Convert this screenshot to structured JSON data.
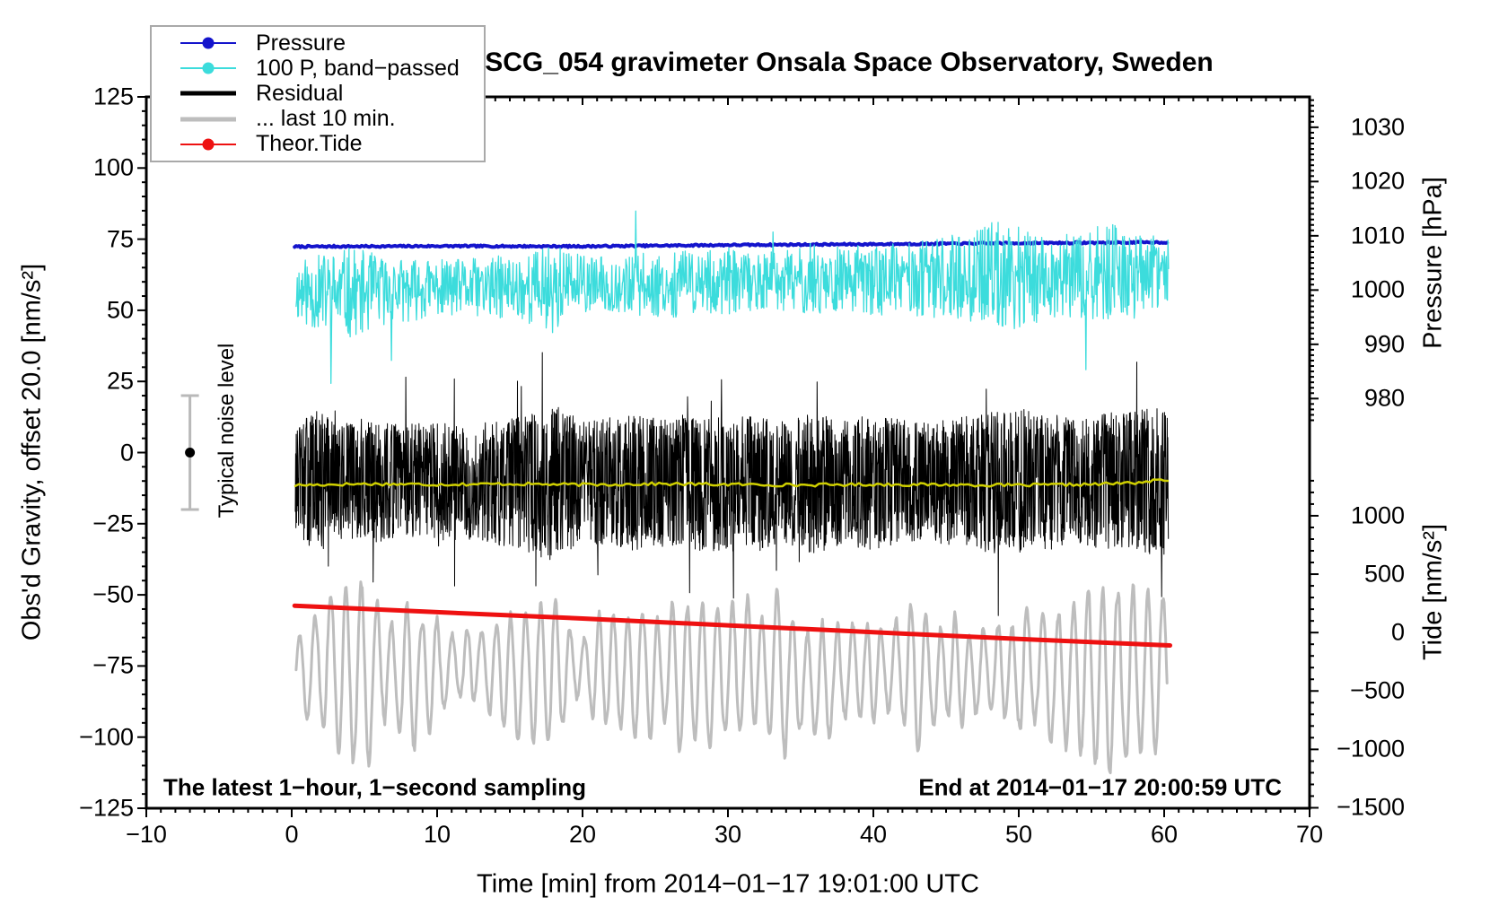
{
  "background": "#ffffff",
  "chart_data": {
    "type": "line",
    "title": "SCG_054 gravimeter Onsala Space Observatory, Sweden",
    "xlabel": "Time [min] from 2014−01−17 19:01:00 UTC",
    "annotations": {
      "sampling_note": "The latest 1−hour, 1−second sampling",
      "end_note": "End at 2014−01−17 20:00:59 UTC",
      "noise_note": "Typical noise level"
    },
    "axes": {
      "x": {
        "label": "Time [min] from 2014−01−17 19:01:00 UTC",
        "range": [
          -10,
          70
        ],
        "annot_step": 10,
        "minor_step": 1,
        "tick_values": [
          -10,
          0,
          10,
          20,
          30,
          40,
          50,
          60,
          70
        ],
        "tick_labels": [
          "−10",
          "0",
          "10",
          "20",
          "30",
          "40",
          "50",
          "60",
          "70"
        ]
      },
      "gravity": {
        "label": "Obs'd Gravity, offset 20.0 [nm/s²]",
        "range": [
          -125,
          125
        ],
        "annot_step": 25,
        "minor_step": 5,
        "tick_values": [
          125,
          100,
          75,
          50,
          25,
          0,
          -25,
          -50,
          -75,
          -100,
          -125
        ],
        "tick_labels": [
          "125",
          "100",
          "75",
          "50",
          "25",
          "0",
          "−25",
          "−50",
          "−75",
          "−100",
          "−125"
        ]
      },
      "pressure": {
        "label": "Pressure [hPa]",
        "range": [
          904.5,
          1035.6
        ],
        "annot_step": 10,
        "minor_step": 1,
        "minor_range": [
          976,
          1035
        ],
        "tick_values": [
          1030,
          1020,
          1010,
          1000,
          990,
          980
        ],
        "tick_labels": [
          "1030",
          "1020",
          "1010",
          "1000",
          "990",
          "980"
        ]
      },
      "tide": {
        "label": "Tide [nm/s²]",
        "range": [
          -1504,
          4586
        ],
        "annot_step": 500,
        "minor_step": 100,
        "minor_range": [
          -1500,
          1300
        ],
        "tick_values": [
          1000,
          500,
          0,
          -500,
          -1000,
          -1500
        ],
        "tick_labels": [
          "1000",
          "500",
          "0",
          "−500",
          "−1000",
          "−1500"
        ]
      }
    },
    "noise_marker": {
      "t": -7,
      "center": 0,
      "half_width": 20,
      "bar_color": "#b9b9b9",
      "dot_color": "#000000"
    },
    "legend": [
      {
        "label": "Pressure",
        "color": "#1414cc",
        "line_width": 2,
        "dot": true
      },
      {
        "label": "100 P, band−passed",
        "color": "#3cdcdc",
        "line_width": 2,
        "dot": true
      },
      {
        "label": "Residual",
        "color": "#000000",
        "line_width": 5,
        "dot": false
      },
      {
        "label": "... last 10 min.",
        "color": "#bdbdbd",
        "line_width": 5,
        "dot": false
      },
      {
        "label": "Theor.Tide",
        "color": "#ee1111",
        "line_width": 2,
        "dot": true
      }
    ],
    "series": [
      {
        "name": "pressure",
        "axis": "pressure",
        "color": "#1414cc",
        "width": 4,
        "gen": "jitter-trend",
        "seed": 7,
        "dt": 0.1,
        "t0": 0.2,
        "t1": 60.3,
        "jitter": 0.16,
        "points": [
          [
            0,
            1008.0
          ],
          [
            10,
            1008.1
          ],
          [
            20,
            1008.05
          ],
          [
            30,
            1008.3
          ],
          [
            40,
            1008.45
          ],
          [
            50,
            1008.65
          ],
          [
            60,
            1008.8
          ]
        ]
      },
      {
        "name": "pressure_bandpassed_x100",
        "axis": "gravity",
        "color": "#3cdcdc",
        "width": 1.3,
        "gen": "osc-noise",
        "seed": 11,
        "dt": 0.04,
        "t0": 0.3,
        "t1": 60.3,
        "spike_prob": 0.008,
        "spike_gain": 2.5,
        "points": [
          [
            0,
            57,
            10
          ],
          [
            2,
            56,
            14
          ],
          [
            4,
            56,
            16
          ],
          [
            6,
            57,
            13
          ],
          [
            8,
            57,
            11
          ],
          [
            10,
            58,
            10
          ],
          [
            12,
            58,
            10
          ],
          [
            14,
            58,
            11
          ],
          [
            16,
            58,
            12
          ],
          [
            18,
            58,
            16
          ],
          [
            20,
            59,
            10
          ],
          [
            22,
            59,
            10
          ],
          [
            24,
            59,
            11
          ],
          [
            26,
            59,
            12
          ],
          [
            28,
            60,
            11
          ],
          [
            30,
            60,
            12
          ],
          [
            32,
            60,
            10
          ],
          [
            34,
            60,
            11
          ],
          [
            36,
            61,
            13
          ],
          [
            38,
            61,
            11
          ],
          [
            40,
            61,
            13
          ],
          [
            42,
            61,
            12
          ],
          [
            44,
            61,
            14
          ],
          [
            46,
            62,
            15
          ],
          [
            48,
            62,
            19
          ],
          [
            50,
            62,
            19
          ],
          [
            52,
            62,
            16
          ],
          [
            54,
            62,
            14
          ],
          [
            56,
            63,
            18
          ],
          [
            58,
            63,
            16
          ],
          [
            60,
            63,
            12
          ]
        ]
      },
      {
        "name": "residual",
        "axis": "gravity",
        "color": "#000000",
        "width": 1,
        "gen": "dense-noise",
        "seed": 13,
        "dt": 0.0201,
        "t0": 0.25,
        "t1": 60.3,
        "spike_prob": 0.012,
        "spike_gain": 1.9,
        "points": [
          [
            0,
            -10,
            16
          ],
          [
            1,
            -10,
            22
          ],
          [
            2,
            -10,
            26
          ],
          [
            3,
            -10,
            20
          ],
          [
            5,
            -10,
            22
          ],
          [
            8,
            -10,
            20
          ],
          [
            10,
            -10.3,
            21
          ],
          [
            12,
            -10.3,
            20
          ],
          [
            14,
            -10.4,
            22
          ],
          [
            16,
            -10.5,
            24
          ],
          [
            18,
            -10.5,
            28
          ],
          [
            20,
            -10.5,
            22
          ],
          [
            22,
            -10.5,
            23
          ],
          [
            24,
            -10.6,
            24
          ],
          [
            26,
            -10.6,
            22
          ],
          [
            28,
            -10.7,
            24
          ],
          [
            30,
            -10.8,
            25
          ],
          [
            32,
            -10.7,
            23
          ],
          [
            34,
            -10.6,
            22
          ],
          [
            36,
            -10.6,
            25
          ],
          [
            38,
            -10.5,
            22
          ],
          [
            40,
            -10.5,
            24
          ],
          [
            42,
            -10.4,
            22
          ],
          [
            44,
            -10.4,
            21
          ],
          [
            46,
            -10.4,
            23
          ],
          [
            48,
            -10.3,
            25
          ],
          [
            50,
            -10.3,
            26
          ],
          [
            52,
            -10.3,
            24
          ],
          [
            54,
            -10.2,
            22
          ],
          [
            56,
            -10.2,
            24
          ],
          [
            58,
            -10.2,
            25
          ],
          [
            60,
            -10.2,
            26
          ]
        ]
      },
      {
        "name": "residual_smoothed",
        "axis": "gravity",
        "color": "#cfcf00",
        "width": 2.5,
        "gen": "smooth-noise",
        "seed": 17,
        "dt": 0.25,
        "t0": 0.25,
        "t1": 60.3,
        "wiggle": 1.1,
        "points": [
          [
            0,
            -11.5
          ],
          [
            5,
            -11.0
          ],
          [
            10,
            -11.2
          ],
          [
            15,
            -11.0
          ],
          [
            20,
            -11.3
          ],
          [
            25,
            -11.0
          ],
          [
            30,
            -11.2
          ],
          [
            35,
            -11.4
          ],
          [
            40,
            -11.2
          ],
          [
            45,
            -11.3
          ],
          [
            50,
            -11.5
          ],
          [
            55,
            -11.2
          ],
          [
            58,
            -10.6
          ],
          [
            60,
            -9.6
          ]
        ]
      },
      {
        "name": "residual_last_10_min",
        "axis": "gravity",
        "color": "#bdbdbd",
        "width": 3,
        "gen": "slow-osc",
        "seed": 23,
        "dt": 0.05,
        "t0": 0.3,
        "t1": 60.2,
        "period": 1.05,
        "points": [
          [
            0,
            -80,
            12
          ],
          [
            2,
            -76,
            20
          ],
          [
            4,
            -78,
            28
          ],
          [
            6,
            -76,
            30
          ],
          [
            8,
            -78,
            34
          ],
          [
            10,
            -77,
            26
          ],
          [
            12,
            -74,
            19
          ],
          [
            14,
            -76,
            26
          ],
          [
            16,
            -78,
            28
          ],
          [
            18,
            -77,
            24
          ],
          [
            20,
            -75,
            19
          ],
          [
            22,
            -78,
            26
          ],
          [
            24,
            -78,
            21
          ],
          [
            26,
            -77,
            26
          ],
          [
            28,
            -78,
            24
          ],
          [
            30,
            -77,
            21
          ],
          [
            32,
            -76,
            24
          ],
          [
            34,
            -79,
            28
          ],
          [
            36,
            -82,
            34
          ],
          [
            38,
            -78,
            24
          ],
          [
            40,
            -77,
            26
          ],
          [
            42,
            -78,
            24
          ],
          [
            44,
            -77,
            28
          ],
          [
            46,
            -78,
            26
          ],
          [
            48,
            -76,
            28
          ],
          [
            50,
            -78,
            33
          ],
          [
            52,
            -77,
            24
          ],
          [
            54,
            -78,
            28
          ],
          [
            56,
            -81,
            34
          ],
          [
            58,
            -79,
            30
          ],
          [
            60,
            -77,
            24
          ]
        ]
      },
      {
        "name": "theoretical_tide",
        "axis": "tide",
        "color": "#ee1111",
        "width": 5,
        "gen": "trend",
        "t0": 0.2,
        "t1": 60.4,
        "points": [
          [
            0.2,
            230
          ],
          [
            10,
            175
          ],
          [
            20,
            120
          ],
          [
            30,
            62
          ],
          [
            40,
            3
          ],
          [
            50,
            -55
          ],
          [
            60.4,
            -110
          ]
        ]
      }
    ]
  }
}
